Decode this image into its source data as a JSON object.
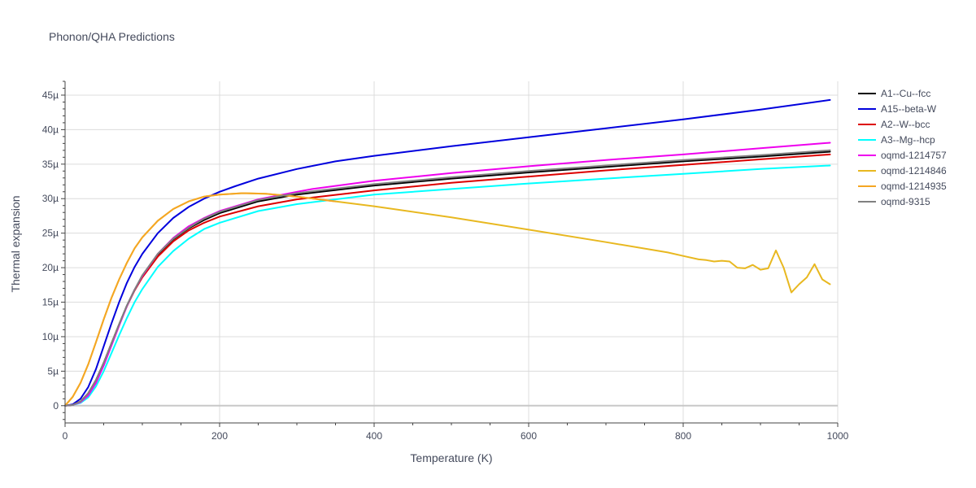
{
  "chart_data": {
    "type": "line",
    "title": "Phonon/QHA Predictions",
    "xlabel": "Temperature (K)",
    "ylabel": "Thermal expansion",
    "xlim": [
      0,
      1000
    ],
    "ylim": [
      -2.5,
      47
    ],
    "x_ticks": [
      0,
      200,
      400,
      600,
      800,
      1000
    ],
    "x_tick_labels": [
      "0",
      "200",
      "400",
      "600",
      "800",
      "1000"
    ],
    "y_ticks": [
      0,
      5,
      10,
      15,
      20,
      25,
      30,
      35,
      40,
      45
    ],
    "y_tick_labels": [
      "0",
      "5µ",
      "10µ",
      "15µ",
      "20µ",
      "25µ",
      "30µ",
      "35µ",
      "40µ",
      "45µ"
    ],
    "y_unit": "1e-6 K^-1",
    "grid": true,
    "legend_position": "top-right",
    "series": [
      {
        "name": "A1--Cu--fcc",
        "color": "#000000",
        "x": [
          0,
          10,
          20,
          30,
          40,
          50,
          60,
          70,
          80,
          90,
          100,
          120,
          140,
          160,
          180,
          200,
          250,
          300,
          400,
          500,
          600,
          700,
          800,
          900,
          990
        ],
        "y": [
          0,
          0.1,
          0.6,
          1.8,
          3.7,
          6.2,
          9.0,
          11.8,
          14.5,
          16.8,
          18.8,
          21.9,
          24.1,
          25.7,
          26.9,
          27.9,
          29.6,
          30.6,
          31.9,
          32.9,
          33.8,
          34.6,
          35.4,
          36.1,
          36.8
        ]
      },
      {
        "name": "A15--beta-W",
        "color": "#0000dd",
        "x": [
          0,
          10,
          20,
          30,
          40,
          50,
          60,
          70,
          80,
          90,
          100,
          120,
          140,
          160,
          180,
          200,
          220,
          250,
          300,
          350,
          400,
          500,
          600,
          700,
          800,
          900,
          990
        ],
        "y": [
          0,
          0.2,
          1.0,
          2.7,
          5.3,
          8.6,
          11.9,
          15.0,
          17.8,
          20.1,
          22.0,
          25.0,
          27.2,
          28.8,
          30.0,
          31.0,
          31.8,
          32.9,
          34.3,
          35.4,
          36.2,
          37.6,
          38.9,
          40.2,
          41.5,
          42.9,
          44.3
        ]
      },
      {
        "name": "A2--W--bcc",
        "color": "#dd0000",
        "x": [
          0,
          10,
          20,
          30,
          40,
          50,
          60,
          70,
          80,
          90,
          100,
          120,
          140,
          160,
          180,
          200,
          250,
          300,
          400,
          500,
          600,
          700,
          800,
          900,
          990
        ],
        "y": [
          0,
          0.1,
          0.6,
          1.8,
          3.7,
          6.2,
          9.0,
          11.8,
          14.4,
          16.7,
          18.6,
          21.6,
          23.8,
          25.4,
          26.5,
          27.4,
          28.9,
          29.9,
          31.2,
          32.3,
          33.2,
          34.1,
          34.9,
          35.7,
          36.4
        ]
      },
      {
        "name": "A3--Mg--hcp",
        "color": "#00ffff",
        "x": [
          0,
          10,
          20,
          30,
          40,
          50,
          60,
          70,
          80,
          90,
          100,
          120,
          140,
          160,
          180,
          200,
          250,
          300,
          400,
          500,
          600,
          700,
          800,
          900,
          990
        ],
        "y": [
          0,
          0.1,
          0.4,
          1.2,
          2.8,
          5.0,
          7.6,
          10.2,
          12.7,
          15.0,
          16.9,
          20.1,
          22.4,
          24.2,
          25.6,
          26.5,
          28.2,
          29.2,
          30.6,
          31.4,
          32.2,
          32.9,
          33.6,
          34.3,
          34.8
        ]
      },
      {
        "name": "oqmd-1214757",
        "color": "#ee00ee",
        "x": [
          0,
          10,
          20,
          30,
          40,
          50,
          60,
          70,
          80,
          90,
          100,
          120,
          140,
          160,
          180,
          200,
          250,
          300,
          320,
          400,
          500,
          600,
          700,
          800,
          900,
          990
        ],
        "y": [
          0,
          0.1,
          0.5,
          1.5,
          3.3,
          5.8,
          8.7,
          11.6,
          14.4,
          16.8,
          18.8,
          22.0,
          24.3,
          26.0,
          27.2,
          28.2,
          29.9,
          31.0,
          31.4,
          32.6,
          33.7,
          34.7,
          35.6,
          36.4,
          37.3,
          38.1
        ]
      },
      {
        "name": "oqmd-1214846",
        "color": "#e8b820",
        "x": [
          0,
          10,
          20,
          30,
          40,
          50,
          60,
          70,
          80,
          90,
          100,
          120,
          140,
          160,
          180,
          200,
          230,
          260,
          300,
          350,
          400,
          500,
          600,
          700,
          780,
          800,
          820,
          830,
          840,
          850,
          860,
          870,
          880,
          890,
          900,
          910,
          920,
          930,
          940,
          950,
          960,
          970,
          980,
          990
        ],
        "y": [
          0,
          1.3,
          3.3,
          6.0,
          9.2,
          12.5,
          15.6,
          18.3,
          20.7,
          22.8,
          24.4,
          26.8,
          28.5,
          29.6,
          30.3,
          30.6,
          30.8,
          30.7,
          30.3,
          29.6,
          28.9,
          27.3,
          25.5,
          23.7,
          22.2,
          21.7,
          21.2,
          21.1,
          20.9,
          21.0,
          20.9,
          20.0,
          19.9,
          20.4,
          19.7,
          19.9,
          22.5,
          20.0,
          16.4,
          17.6,
          18.6,
          20.5,
          18.3,
          17.6
        ]
      },
      {
        "name": "oqmd-1214935",
        "color": "#f5a623",
        "x": [
          0,
          10,
          20,
          30,
          40,
          50,
          60,
          70,
          80,
          90,
          100,
          120,
          140,
          160,
          180,
          200,
          230,
          260,
          300,
          350
        ],
        "y": [
          0,
          1.3,
          3.3,
          6.0,
          9.2,
          12.5,
          15.6,
          18.3,
          20.7,
          22.8,
          24.4,
          26.8,
          28.5,
          29.6,
          30.3,
          30.6,
          30.8,
          30.7,
          30.3,
          29.6
        ]
      },
      {
        "name": "oqmd-9315",
        "color": "#808080",
        "x": [
          0,
          10,
          20,
          30,
          40,
          50,
          60,
          70,
          80,
          90,
          100,
          120,
          140,
          160,
          180,
          200,
          250,
          300,
          400,
          500,
          600,
          700,
          800,
          900,
          990
        ],
        "y": [
          0,
          0.1,
          0.6,
          1.8,
          3.7,
          6.2,
          9.0,
          11.8,
          14.5,
          16.8,
          18.9,
          22.0,
          24.2,
          25.8,
          27.1,
          28.1,
          29.8,
          30.8,
          32.1,
          33.1,
          34.0,
          34.8,
          35.6,
          36.3,
          37.0
        ]
      }
    ]
  }
}
